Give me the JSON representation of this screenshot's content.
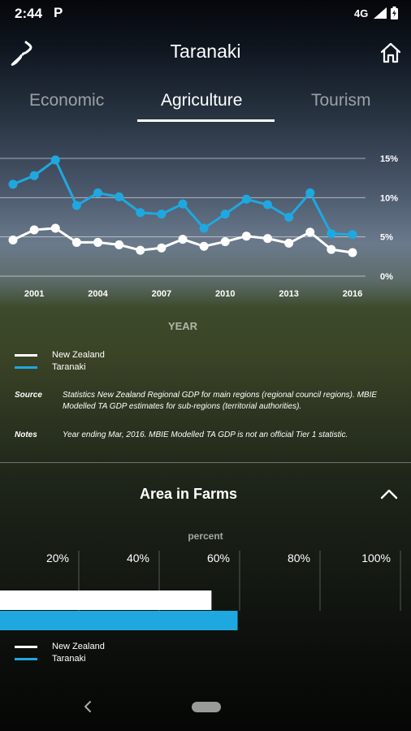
{
  "status": {
    "time": "2:44",
    "app_indicator": "P",
    "network": "4G",
    "icons": [
      "signal-icon",
      "battery-icon"
    ]
  },
  "header": {
    "title": "Taranaki",
    "logo_icon": "nz-map-icon",
    "home_icon": "home-icon"
  },
  "tabs": [
    {
      "label": "Economic",
      "active": false
    },
    {
      "label": "Agriculture",
      "active": true
    },
    {
      "label": "Tourism",
      "active": false
    }
  ],
  "colors": {
    "new_zealand": "#ffffff",
    "taranaki": "#1fa8e0"
  },
  "gdp_chart": {
    "x_axis_title": "YEAR",
    "legend": [
      "New Zealand",
      "Taranaki"
    ],
    "source_label": "Source",
    "source_text": "Statistics New Zealand Regional GDP for main regions (regional council regions). MBIE Modelled TA GDP estimates for sub-regions (territorial authorities).",
    "notes_label": "Notes",
    "notes_text": "Year ending Mar, 2016. MBIE Modelled TA GDP is not an official Tier 1 statistic."
  },
  "farms": {
    "title": "Area in Farms",
    "unit_label": "percent",
    "collapse_icon": "chevron-up-icon",
    "legend": [
      "New Zealand",
      "Taranaki"
    ]
  },
  "chart_data": [
    {
      "type": "line",
      "x": [
        2000,
        2001,
        2002,
        2003,
        2004,
        2005,
        2006,
        2007,
        2008,
        2009,
        2010,
        2011,
        2012,
        2013,
        2014,
        2015,
        2016
      ],
      "x_tick_labels": [
        "2001",
        "2004",
        "2007",
        "2010",
        "2013",
        "2016"
      ],
      "y_tick_labels": [
        "15%",
        "10%",
        "5%",
        "0%"
      ],
      "ylim": [
        0,
        15
      ],
      "xlabel": "YEAR",
      "grid": true,
      "series": [
        {
          "name": "New Zealand",
          "values": [
            4.6,
            5.9,
            6.1,
            4.3,
            4.3,
            4.0,
            3.3,
            3.6,
            4.7,
            3.8,
            4.4,
            5.1,
            4.8,
            4.2,
            5.6,
            3.4,
            3.0
          ]
        },
        {
          "name": "Taranaki",
          "values": [
            11.7,
            12.8,
            14.8,
            9.0,
            10.6,
            10.1,
            8.1,
            7.9,
            9.2,
            6.1,
            7.9,
            9.8,
            9.1,
            7.5,
            10.6,
            5.4,
            5.3
          ]
        }
      ]
    },
    {
      "type": "bar",
      "orientation": "horizontal",
      "x_tick_labels": [
        "20%",
        "40%",
        "60%",
        "80%",
        "100%"
      ],
      "xlim": [
        0,
        100
      ],
      "xlabel": "percent",
      "categories": [
        "Area in Farms"
      ],
      "series": [
        {
          "name": "New Zealand",
          "values": [
            53
          ]
        },
        {
          "name": "Taranaki",
          "values": [
            59.5
          ]
        }
      ]
    }
  ]
}
